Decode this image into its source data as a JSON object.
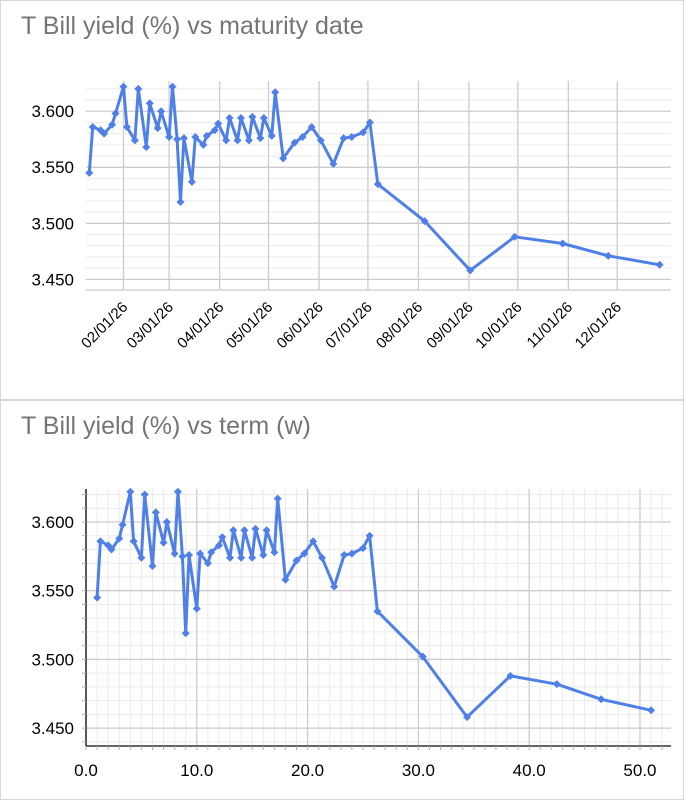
{
  "colors": {
    "line": "#4f80e8",
    "title_text": "#757575",
    "tick_text": "#000000",
    "grid_minor": "#ebebeb",
    "grid_major": "#cccccc",
    "axis_line": "#333333",
    "tick_stub": "#b0b0b0",
    "panel_border": "#d9d9d9",
    "background": "#ffffff"
  },
  "chart_data": {
    "series_name": "T Bill yield (%)",
    "marker": "diamond",
    "points": [
      {
        "term_w": 1.0,
        "yield_pct": 3.545
      },
      {
        "term_w": 1.3,
        "yield_pct": 3.586
      },
      {
        "term_w": 2.0,
        "yield_pct": 3.583
      },
      {
        "term_w": 2.3,
        "yield_pct": 3.58
      },
      {
        "term_w": 3.0,
        "yield_pct": 3.588
      },
      {
        "term_w": 3.3,
        "yield_pct": 3.598
      },
      {
        "term_w": 4.0,
        "yield_pct": 3.622
      },
      {
        "term_w": 4.3,
        "yield_pct": 3.586
      },
      {
        "term_w": 5.0,
        "yield_pct": 3.574
      },
      {
        "term_w": 5.3,
        "yield_pct": 3.62
      },
      {
        "term_w": 6.0,
        "yield_pct": 3.568
      },
      {
        "term_w": 6.3,
        "yield_pct": 3.607
      },
      {
        "term_w": 7.0,
        "yield_pct": 3.585
      },
      {
        "term_w": 7.3,
        "yield_pct": 3.6
      },
      {
        "term_w": 8.0,
        "yield_pct": 3.577
      },
      {
        "term_w": 8.3,
        "yield_pct": 3.622
      },
      {
        "term_w": 8.7,
        "yield_pct": 3.575
      },
      {
        "term_w": 9.0,
        "yield_pct": 3.519
      },
      {
        "term_w": 9.3,
        "yield_pct": 3.576
      },
      {
        "term_w": 10.0,
        "yield_pct": 3.537
      },
      {
        "term_w": 10.3,
        "yield_pct": 3.577
      },
      {
        "term_w": 11.0,
        "yield_pct": 3.57
      },
      {
        "term_w": 11.3,
        "yield_pct": 3.578
      },
      {
        "term_w": 12.0,
        "yield_pct": 3.583
      },
      {
        "term_w": 12.3,
        "yield_pct": 3.589
      },
      {
        "term_w": 13.0,
        "yield_pct": 3.574
      },
      {
        "term_w": 13.3,
        "yield_pct": 3.594
      },
      {
        "term_w": 14.0,
        "yield_pct": 3.574
      },
      {
        "term_w": 14.3,
        "yield_pct": 3.594
      },
      {
        "term_w": 15.0,
        "yield_pct": 3.574
      },
      {
        "term_w": 15.3,
        "yield_pct": 3.595
      },
      {
        "term_w": 16.0,
        "yield_pct": 3.576
      },
      {
        "term_w": 16.3,
        "yield_pct": 3.594
      },
      {
        "term_w": 17.0,
        "yield_pct": 3.578
      },
      {
        "term_w": 17.3,
        "yield_pct": 3.617
      },
      {
        "term_w": 18.0,
        "yield_pct": 3.558
      },
      {
        "term_w": 19.0,
        "yield_pct": 3.572
      },
      {
        "term_w": 19.7,
        "yield_pct": 3.577
      },
      {
        "term_w": 20.5,
        "yield_pct": 3.586
      },
      {
        "term_w": 21.3,
        "yield_pct": 3.574
      },
      {
        "term_w": 22.4,
        "yield_pct": 3.553
      },
      {
        "term_w": 23.3,
        "yield_pct": 3.576
      },
      {
        "term_w": 24.0,
        "yield_pct": 3.577
      },
      {
        "term_w": 25.0,
        "yield_pct": 3.581
      },
      {
        "term_w": 25.6,
        "yield_pct": 3.59
      },
      {
        "term_w": 26.3,
        "yield_pct": 3.535
      },
      {
        "term_w": 30.4,
        "yield_pct": 3.502
      },
      {
        "term_w": 34.4,
        "yield_pct": 3.458
      },
      {
        "term_w": 38.3,
        "yield_pct": 3.488
      },
      {
        "term_w": 42.5,
        "yield_pct": 3.482
      },
      {
        "term_w": 46.5,
        "yield_pct": 3.471
      },
      {
        "term_w": 51.0,
        "yield_pct": 3.463
      }
    ],
    "charts": [
      {
        "id": "yield-vs-maturity-date",
        "type": "line",
        "title": "T Bill yield (%) vs maturity date",
        "x_mode": "date",
        "date_origin_note": "term 0 corresponds to approx 01/04/26",
        "x_tick_labels": [
          "02/01/26",
          "03/01/26",
          "04/01/26",
          "05/01/26",
          "06/01/26",
          "07/01/26",
          "08/01/26",
          "09/01/26",
          "10/01/26",
          "11/01/26",
          "12/01/26"
        ],
        "x_tick_day_offsets": [
          28,
          56,
          87,
          117,
          148,
          178,
          209,
          240,
          270,
          301,
          331
        ],
        "xlim_day_offsets": [
          5,
          364
        ],
        "y_tick_labels": [
          "3.450",
          "3.500",
          "3.550",
          "3.600"
        ],
        "y_tick_values": [
          3.45,
          3.5,
          3.55,
          3.6
        ],
        "ylim": [
          3.4405,
          3.627
        ],
        "h_minor_step": 0.01,
        "h_minor_range": [
          3.45,
          3.62
        ],
        "v_minor": false,
        "axis_lines": false,
        "rotated_x_labels": true,
        "legend": "none"
      },
      {
        "id": "yield-vs-term",
        "type": "line",
        "title": "T Bill yield (%) vs term (w)",
        "x_mode": "term",
        "x_tick_labels": [
          "0.0",
          "10.0",
          "20.0",
          "30.0",
          "40.0",
          "50.0"
        ],
        "x_tick_values": [
          0,
          10,
          20,
          30,
          40,
          50
        ],
        "xlim": [
          0,
          52.8
        ],
        "y_tick_labels": [
          "3.450",
          "3.500",
          "3.550",
          "3.600"
        ],
        "y_tick_values": [
          3.45,
          3.5,
          3.55,
          3.6
        ],
        "ylim": [
          3.437,
          3.624
        ],
        "h_minor_step": 0.01,
        "h_minor_range": [
          3.44,
          3.62
        ],
        "v_minor": true,
        "v_minor_step": 1,
        "v_minor_max": 52,
        "axis_lines": true,
        "rotated_x_labels": false,
        "legend": "none"
      }
    ]
  }
}
